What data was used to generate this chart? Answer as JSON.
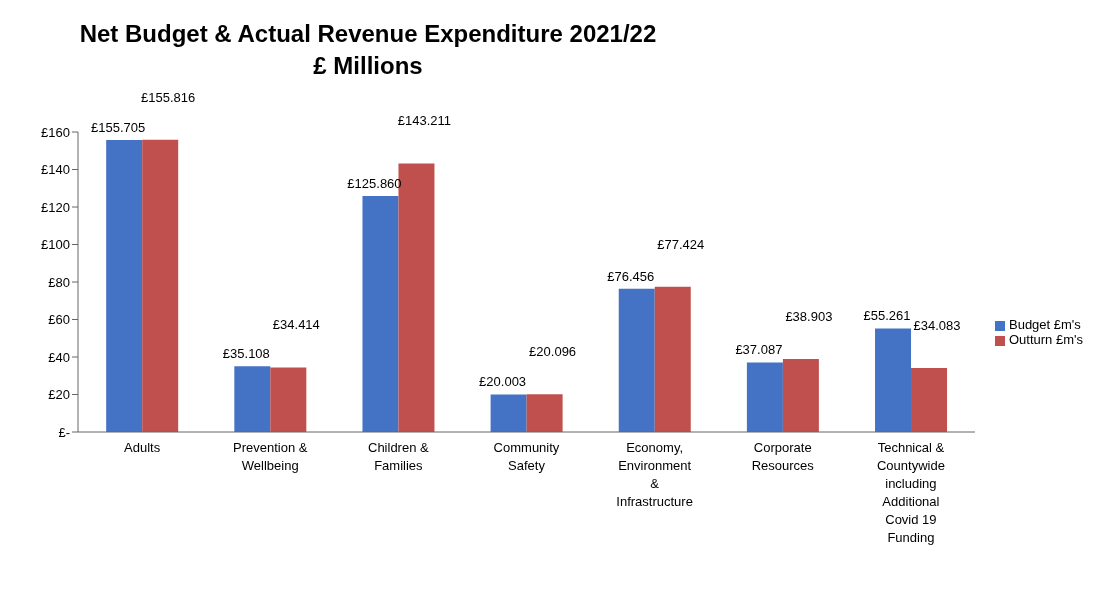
{
  "chart_data": {
    "type": "bar",
    "title": "Net Budget & Actual Revenue Expenditure 2021/22",
    "subtitle": "£ Millions",
    "categories": [
      "Adults",
      "Prevention & Wellbeing",
      "Children & Families",
      "Community Safety",
      "Economy, Environment & Infrastructure",
      "Corporate Resources",
      "Technical & Countywide including Additional Covid 19 Funding"
    ],
    "series": [
      {
        "name": "Budget £m's",
        "color": "#4472c4",
        "values": [
          155.705,
          35.108,
          125.86,
          20.003,
          76.456,
          37.087,
          55.261
        ],
        "value_labels": [
          "£155.705",
          "£35.108",
          "£125.860",
          "£20.003",
          "£76.456",
          "£37.087",
          "£55.261"
        ]
      },
      {
        "name": "Outturn £m's",
        "color": "#c0504d",
        "values": [
          155.816,
          34.414,
          143.211,
          20.096,
          77.424,
          38.903,
          34.083
        ],
        "value_labels": [
          "£155.816",
          "£34.414",
          "£143.211",
          "£20.096",
          "£77.424",
          "£38.903",
          "£34.083"
        ]
      }
    ],
    "ylim": [
      0,
      160
    ],
    "yticks": [
      {
        "value": 0,
        "label": "£-"
      },
      {
        "value": 20,
        "label": "£20"
      },
      {
        "value": 40,
        "label": "£40"
      },
      {
        "value": 60,
        "label": "£60"
      },
      {
        "value": 80,
        "label": "£80"
      },
      {
        "value": 100,
        "label": "£100"
      },
      {
        "value": 120,
        "label": "£120"
      },
      {
        "value": 140,
        "label": "£140"
      },
      {
        "value": 160,
        "label": "£160"
      }
    ],
    "legend": "right"
  }
}
